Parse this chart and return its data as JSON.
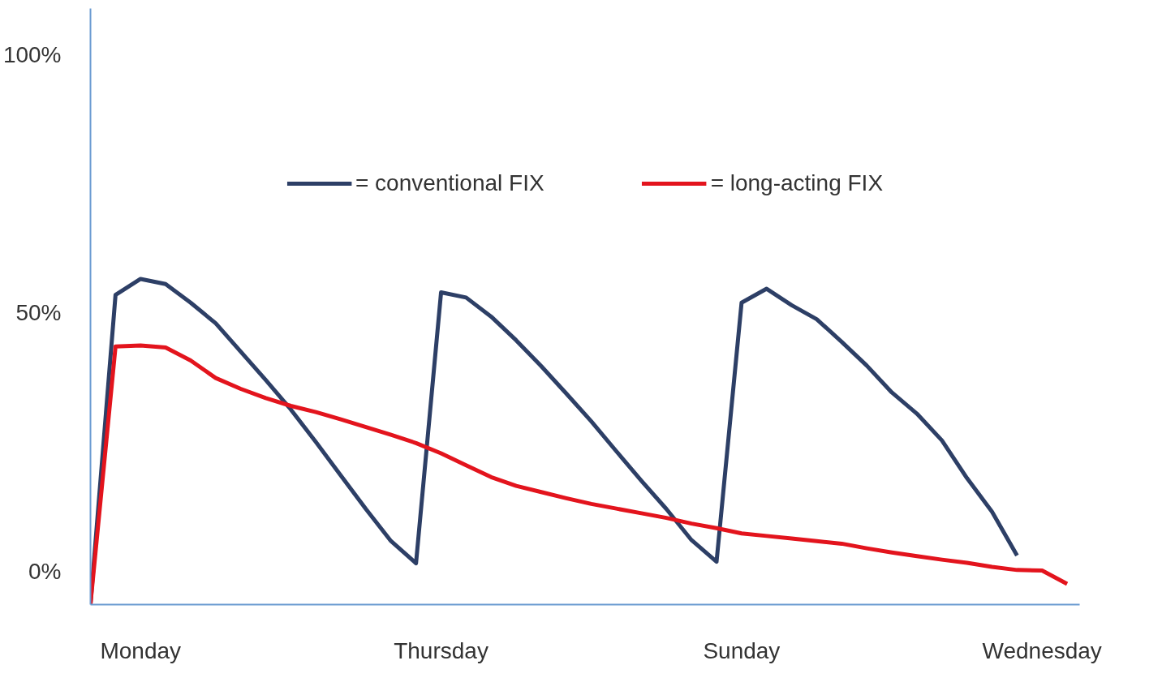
{
  "chart_data": {
    "type": "line",
    "categories": [
      null,
      null,
      "Monday",
      null,
      null,
      null,
      null,
      null,
      null,
      null,
      null,
      null,
      null,
      null,
      "Thursday",
      null,
      null,
      null,
      null,
      null,
      null,
      null,
      null,
      null,
      null,
      null,
      "Sunday",
      null,
      null,
      null,
      null,
      null,
      null,
      null,
      null,
      null,
      null,
      null,
      "Wednesday",
      null
    ],
    "ylim": [
      -6.5,
      109
    ],
    "yticks": [
      {
        "value": 0,
        "label": "0%"
      },
      {
        "value": 50,
        "label": "50%"
      },
      {
        "value": 100,
        "label": "100%"
      }
    ],
    "grid": false,
    "legend": "top",
    "marker": "none",
    "line_style": "solid",
    "series": [
      {
        "name": "= conventional FIX",
        "color": "#2d3f66",
        "values": [
          -6.4,
          53.5,
          56.6,
          55.6,
          52,
          48,
          42.5,
          37,
          31.3,
          25,
          18.5,
          12,
          5.8,
          1.5,
          54,
          53,
          49.3,
          44.7,
          39.7,
          34.4,
          29,
          23.2,
          17.5,
          12,
          6,
          1.8,
          52,
          54.7,
          51.5,
          48.8,
          44.4,
          39.8,
          34.6,
          30.5,
          25.3,
          18,
          11.5,
          3,
          null,
          null
        ]
      },
      {
        "name": "= long-acting FIX",
        "color": "#e3141d",
        "values": [
          -6.4,
          43.5,
          43.7,
          43.3,
          40.8,
          37.4,
          35.3,
          33.5,
          32,
          30.8,
          29.4,
          27.9,
          26.4,
          24.8,
          22.8,
          20.5,
          18.2,
          16.5,
          15.3,
          14.1,
          13,
          12.1,
          11.2,
          10.3,
          9.2,
          8.3,
          7.3,
          6.8,
          6.3,
          5.8,
          5.3,
          4.4,
          3.6,
          2.9,
          2.2,
          1.6,
          0.8,
          0.2,
          0.1,
          -2.5
        ]
      }
    ]
  }
}
